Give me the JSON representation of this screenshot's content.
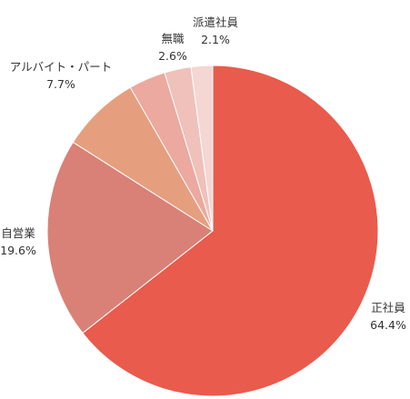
{
  "chart_data": {
    "type": "pie",
    "slices": [
      {
        "label": "正社員",
        "value": 64.4,
        "value_label": "64.4%",
        "color": "#e85b4d"
      },
      {
        "label": "自営業",
        "value": 19.6,
        "value_label": "19.6%",
        "color": "#d98177"
      },
      {
        "label": "アルバイト・パート",
        "value": 7.7,
        "value_label": "7.7%",
        "color": "#e59f7f"
      },
      {
        "label": "",
        "value": 3.6,
        "value_label": "",
        "color": "#eba99f"
      },
      {
        "label": "無職",
        "value": 2.6,
        "value_label": "2.6%",
        "color": "#efc1ba"
      },
      {
        "label": "派遣社員",
        "value": 2.1,
        "value_label": "2.1%",
        "color": "#f4d6d2"
      }
    ],
    "start": "12 o'clock",
    "direction": "clockwise",
    "legend": "none"
  }
}
